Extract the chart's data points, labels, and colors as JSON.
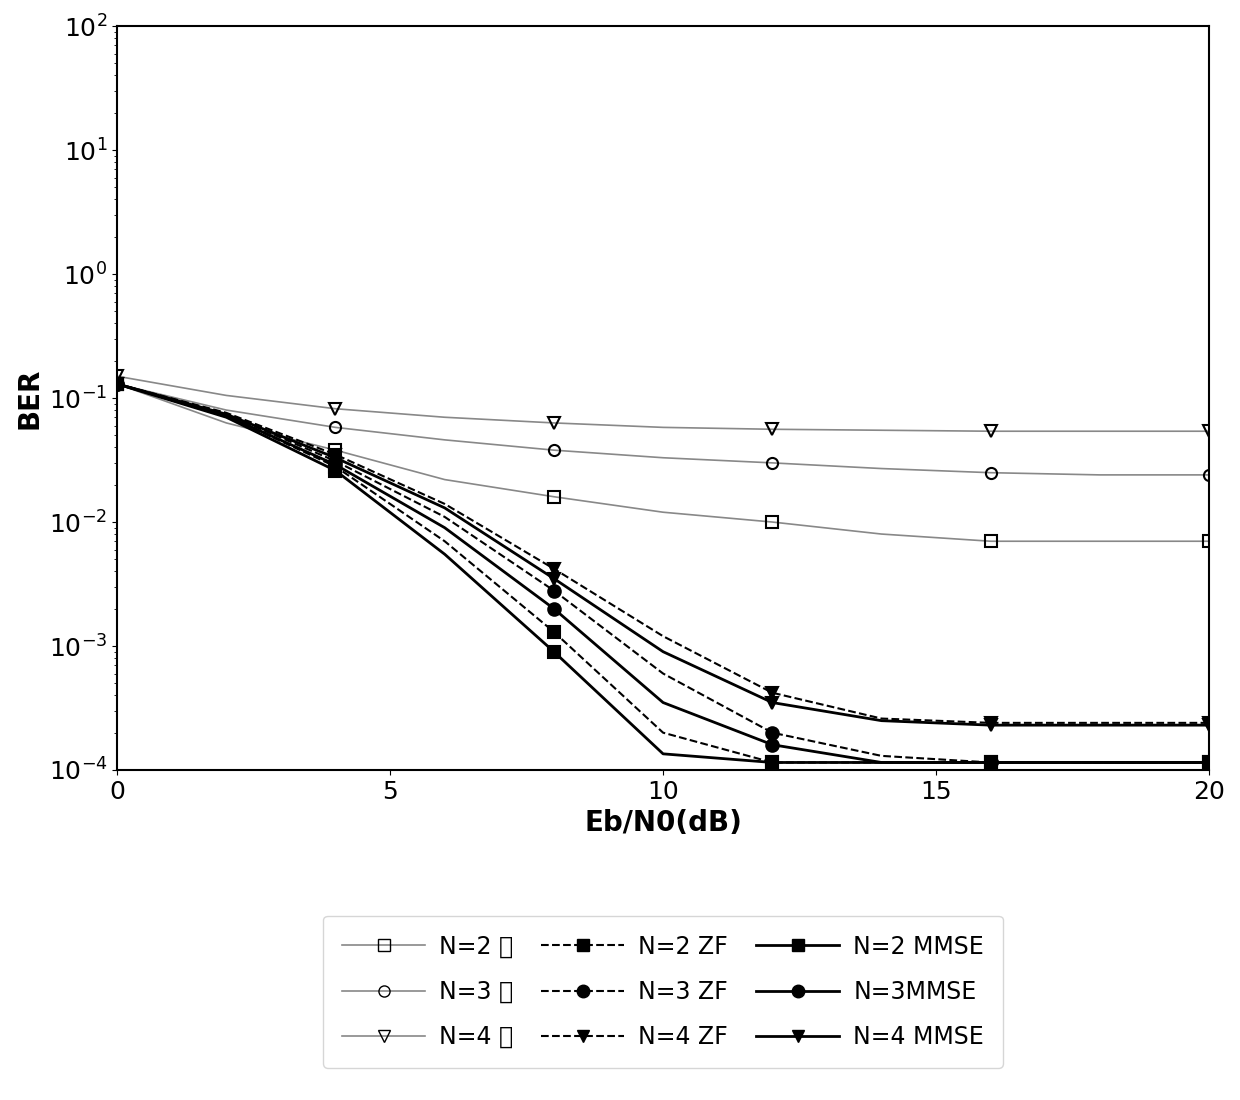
{
  "xlabel": "Eb/N0(dB)",
  "ylabel": "BER",
  "xlim": [
    0,
    20
  ],
  "ylim": [
    0.0001,
    100
  ],
  "x_ticks": [
    0,
    5,
    10,
    15,
    20
  ],
  "curves": [
    {
      "label": "N=2 无",
      "linestyle": "-",
      "marker": "s",
      "fillstyle": "none",
      "color": "#888888",
      "linewidth": 1.2,
      "markersize": 8,
      "x": [
        0,
        2,
        4,
        6,
        8,
        10,
        12,
        14,
        16,
        18,
        20
      ],
      "y": [
        0.13,
        0.063,
        0.038,
        0.022,
        0.016,
        0.012,
        0.01,
        0.008,
        0.007,
        0.007,
        0.007
      ]
    },
    {
      "label": "N=3 无",
      "linestyle": "-",
      "marker": "o",
      "fillstyle": "none",
      "color": "#888888",
      "linewidth": 1.2,
      "markersize": 8,
      "x": [
        0,
        2,
        4,
        6,
        8,
        10,
        12,
        14,
        16,
        18,
        20
      ],
      "y": [
        0.13,
        0.08,
        0.058,
        0.046,
        0.038,
        0.033,
        0.03,
        0.027,
        0.025,
        0.024,
        0.024
      ]
    },
    {
      "label": "N=4 无",
      "linestyle": "-",
      "marker": "v",
      "fillstyle": "none",
      "color": "#888888",
      "linewidth": 1.2,
      "markersize": 8,
      "x": [
        0,
        2,
        4,
        6,
        8,
        10,
        12,
        14,
        16,
        18,
        20
      ],
      "y": [
        0.15,
        0.105,
        0.082,
        0.07,
        0.063,
        0.058,
        0.056,
        0.055,
        0.054,
        0.054,
        0.054
      ]
    },
    {
      "label": "N=2 ZF",
      "linestyle": "--",
      "marker": "s",
      "fillstyle": "full",
      "color": "black",
      "linewidth": 1.5,
      "markersize": 9,
      "x": [
        0,
        2,
        4,
        6,
        8,
        10,
        12,
        14,
        16,
        18,
        20
      ],
      "y": [
        0.13,
        0.072,
        0.028,
        0.007,
        0.0013,
        0.0002,
        0.000115,
        0.000115,
        0.000115,
        0.000115,
        0.000115
      ]
    },
    {
      "label": "N=3 ZF",
      "linestyle": "--",
      "marker": "o",
      "fillstyle": "full",
      "color": "black",
      "linewidth": 1.5,
      "markersize": 9,
      "x": [
        0,
        2,
        4,
        6,
        8,
        10,
        12,
        14,
        16,
        18,
        20
      ],
      "y": [
        0.13,
        0.074,
        0.031,
        0.011,
        0.0028,
        0.0006,
        0.0002,
        0.00013,
        0.000115,
        0.000115,
        0.000115
      ]
    },
    {
      "label": "N=4 ZF",
      "linestyle": "--",
      "marker": "v",
      "fillstyle": "full",
      "color": "black",
      "linewidth": 1.5,
      "markersize": 9,
      "x": [
        0,
        2,
        4,
        6,
        8,
        10,
        12,
        14,
        16,
        18,
        20
      ],
      "y": [
        0.13,
        0.076,
        0.035,
        0.014,
        0.0042,
        0.0012,
        0.00042,
        0.00026,
        0.00024,
        0.00024,
        0.00024
      ]
    },
    {
      "label": "N=2 MMSE",
      "linestyle": "-",
      "marker": "s",
      "fillstyle": "full",
      "color": "black",
      "linewidth": 2.0,
      "markersize": 9,
      "x": [
        0,
        2,
        4,
        6,
        8,
        10,
        12,
        14,
        16,
        18,
        20
      ],
      "y": [
        0.13,
        0.07,
        0.026,
        0.0055,
        0.0009,
        0.000135,
        0.000115,
        0.000115,
        0.000115,
        0.000115,
        0.000115
      ]
    },
    {
      "label": "N=3MMSE",
      "linestyle": "-",
      "marker": "o",
      "fillstyle": "full",
      "color": "black",
      "linewidth": 2.0,
      "markersize": 9,
      "x": [
        0,
        2,
        4,
        6,
        8,
        10,
        12,
        14,
        16,
        18,
        20
      ],
      "y": [
        0.13,
        0.072,
        0.029,
        0.009,
        0.002,
        0.00035,
        0.00016,
        0.000115,
        0.000115,
        0.000115,
        0.000115
      ]
    },
    {
      "label": "N=4 MMSE",
      "linestyle": "-",
      "marker": "v",
      "fillstyle": "full",
      "color": "black",
      "linewidth": 2.0,
      "markersize": 9,
      "x": [
        0,
        2,
        4,
        6,
        8,
        10,
        12,
        14,
        16,
        18,
        20
      ],
      "y": [
        0.13,
        0.074,
        0.033,
        0.013,
        0.0035,
        0.0009,
        0.00035,
        0.00025,
        0.00023,
        0.00023,
        0.00023
      ]
    }
  ],
  "legend_labels": [
    "N=2 无",
    "N=3 无",
    "N=4 无",
    "N=2 ZF",
    "N=3 ZF",
    "N=4 ZF",
    "N=2 MMSE",
    "N=3MMSE",
    "N=4 MMSE"
  ],
  "font_sizes": {
    "axis_label": 20,
    "tick_label": 18
  }
}
